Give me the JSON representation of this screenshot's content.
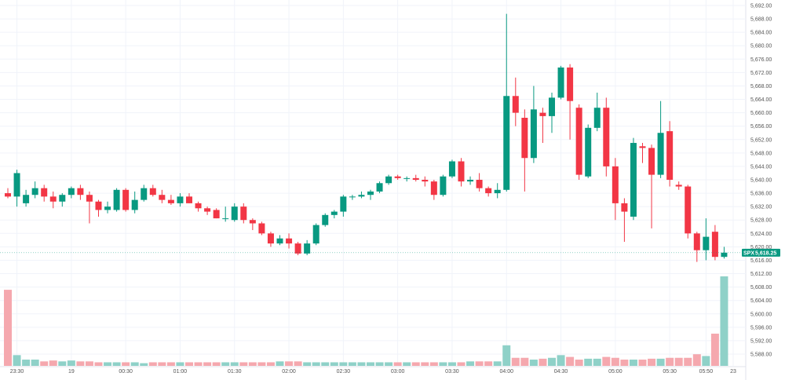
{
  "chart_data": {
    "type": "candlestick",
    "symbol": "SPX",
    "last_price": "5,618.25",
    "colors": {
      "up": "#089981",
      "down": "#f23645",
      "up_volume": "#8fd1c8",
      "down_volume": "#f5a8ae",
      "grid": "#f0f3fa"
    },
    "y_ticks": [
      "5,692.00",
      "5,688.00",
      "5,684.00",
      "5,680.00",
      "5,676.00",
      "5,672.00",
      "5,668.00",
      "5,664.00",
      "5,660.00",
      "5,656.00",
      "5,652.00",
      "5,648.00",
      "5,644.00",
      "5,640.00",
      "5,636.00",
      "5,632.00",
      "5,628.00",
      "5,624.00",
      "5,620.00",
      "5,616.00",
      "5,612.00",
      "5,608.00",
      "5,604.00",
      "5,600.00",
      "5,596.00",
      "5,592.00",
      "5,588.00"
    ],
    "ylim": [
      5586,
      5693
    ],
    "x_ticks": [
      {
        "label": "23:30",
        "index": 1
      },
      {
        "label": "19",
        "index": 7
      },
      {
        "label": "00:30",
        "index": 13
      },
      {
        "label": "01:00",
        "index": 19
      },
      {
        "label": "01:30",
        "index": 25
      },
      {
        "label": "02:00",
        "index": 31
      },
      {
        "label": "02:30",
        "index": 37
      },
      {
        "label": "03:00",
        "index": 43
      },
      {
        "label": "03:30",
        "index": 49
      },
      {
        "label": "04:00",
        "index": 55
      },
      {
        "label": "04:30",
        "index": 61
      },
      {
        "label": "05:00",
        "index": 67
      },
      {
        "label": "05:30",
        "index": 73
      },
      {
        "label": "05:50",
        "index": 77
      },
      {
        "label": "23",
        "index": 80
      }
    ],
    "candles": [
      {
        "o": 5636.0,
        "h": 5637.5,
        "l": 5634.5,
        "c": 5635.0,
        "v": 0.85
      },
      {
        "o": 5635.0,
        "h": 5643.0,
        "l": 5632.0,
        "c": 5642.0,
        "v": 0.12
      },
      {
        "o": 5633.0,
        "h": 5637.0,
        "l": 5632.0,
        "c": 5635.5,
        "v": 0.07
      },
      {
        "o": 5635.5,
        "h": 5639.5,
        "l": 5634.5,
        "c": 5637.5,
        "v": 0.07
      },
      {
        "o": 5637.5,
        "h": 5638.5,
        "l": 5633.5,
        "c": 5635.0,
        "v": 0.05
      },
      {
        "o": 5635.0,
        "h": 5636.5,
        "l": 5631.5,
        "c": 5633.5,
        "v": 0.06
      },
      {
        "o": 5633.5,
        "h": 5636.0,
        "l": 5632.0,
        "c": 5635.5,
        "v": 0.05
      },
      {
        "o": 5635.5,
        "h": 5638.0,
        "l": 5634.5,
        "c": 5637.5,
        "v": 0.06
      },
      {
        "o": 5637.5,
        "h": 5638.5,
        "l": 5634.0,
        "c": 5635.5,
        "v": 0.05
      },
      {
        "o": 5635.5,
        "h": 5636.5,
        "l": 5627.0,
        "c": 5633.5,
        "v": 0.05
      },
      {
        "o": 5633.5,
        "h": 5634.0,
        "l": 5629.0,
        "c": 5631.0,
        "v": 0.04
      },
      {
        "o": 5631.0,
        "h": 5633.5,
        "l": 5630.0,
        "c": 5632.0,
        "v": 0.04
      },
      {
        "o": 5631.0,
        "h": 5637.5,
        "l": 5630.5,
        "c": 5637.0,
        "v": 0.04
      },
      {
        "o": 5637.0,
        "h": 5637.5,
        "l": 5630.5,
        "c": 5631.0,
        "v": 0.04
      },
      {
        "o": 5631.0,
        "h": 5636.5,
        "l": 5630.0,
        "c": 5634.0,
        "v": 0.04
      },
      {
        "o": 5634.0,
        "h": 5638.5,
        "l": 5633.5,
        "c": 5637.5,
        "v": 0.03
      },
      {
        "o": 5637.5,
        "h": 5638.5,
        "l": 5635.0,
        "c": 5635.5,
        "v": 0.04
      },
      {
        "o": 5635.5,
        "h": 5637.0,
        "l": 5633.0,
        "c": 5634.0,
        "v": 0.04
      },
      {
        "o": 5634.0,
        "h": 5635.5,
        "l": 5632.5,
        "c": 5633.0,
        "v": 0.04
      },
      {
        "o": 5633.0,
        "h": 5636.0,
        "l": 5632.0,
        "c": 5635.0,
        "v": 0.04
      },
      {
        "o": 5635.0,
        "h": 5636.0,
        "l": 5633.0,
        "c": 5633.0,
        "v": 0.04
      },
      {
        "o": 5633.0,
        "h": 5633.5,
        "l": 5630.5,
        "c": 5631.5,
        "v": 0.04
      },
      {
        "o": 5631.5,
        "h": 5632.0,
        "l": 5629.5,
        "c": 5630.5,
        "v": 0.04
      },
      {
        "o": 5631.0,
        "h": 5631.5,
        "l": 5628.5,
        "c": 5628.5,
        "v": 0.04
      },
      {
        "o": 5628.5,
        "h": 5632.0,
        "l": 5627.5,
        "c": 5628.5,
        "v": 0.04
      },
      {
        "o": 5628.0,
        "h": 5633.0,
        "l": 5627.5,
        "c": 5632.0,
        "v": 0.04
      },
      {
        "o": 5632.0,
        "h": 5633.0,
        "l": 5627.0,
        "c": 5628.0,
        "v": 0.04
      },
      {
        "o": 5628.0,
        "h": 5628.5,
        "l": 5625.0,
        "c": 5627.0,
        "v": 0.04
      },
      {
        "o": 5627.0,
        "h": 5627.5,
        "l": 5623.5,
        "c": 5624.0,
        "v": 0.04
      },
      {
        "o": 5624.0,
        "h": 5624.5,
        "l": 5620.0,
        "c": 5621.0,
        "v": 0.04
      },
      {
        "o": 5621.0,
        "h": 5623.5,
        "l": 5620.5,
        "c": 5622.5,
        "v": 0.05
      },
      {
        "o": 5622.5,
        "h": 5624.0,
        "l": 5619.5,
        "c": 5621.0,
        "v": 0.05
      },
      {
        "o": 5621.0,
        "h": 5621.5,
        "l": 5617.5,
        "c": 5618.0,
        "v": 0.05
      },
      {
        "o": 5618.0,
        "h": 5622.0,
        "l": 5617.5,
        "c": 5621.0,
        "v": 0.04
      },
      {
        "o": 5621.0,
        "h": 5627.0,
        "l": 5620.5,
        "c": 5626.5,
        "v": 0.04
      },
      {
        "o": 5626.5,
        "h": 5630.0,
        "l": 5626.0,
        "c": 5629.5,
        "v": 0.04
      },
      {
        "o": 5629.5,
        "h": 5631.0,
        "l": 5628.5,
        "c": 5630.5,
        "v": 0.04
      },
      {
        "o": 5630.5,
        "h": 5635.5,
        "l": 5629.0,
        "c": 5635.0,
        "v": 0.04
      },
      {
        "o": 5635.0,
        "h": 5635.5,
        "l": 5634.0,
        "c": 5635.0,
        "v": 0.04
      },
      {
        "o": 5635.0,
        "h": 5636.5,
        "l": 5634.5,
        "c": 5635.5,
        "v": 0.04
      },
      {
        "o": 5635.5,
        "h": 5637.0,
        "l": 5634.0,
        "c": 5636.5,
        "v": 0.04
      },
      {
        "o": 5636.5,
        "h": 5639.5,
        "l": 5636.0,
        "c": 5639.0,
        "v": 0.04
      },
      {
        "o": 5639.0,
        "h": 5641.5,
        "l": 5638.5,
        "c": 5641.0,
        "v": 0.04
      },
      {
        "o": 5641.0,
        "h": 5641.5,
        "l": 5640.0,
        "c": 5640.5,
        "v": 0.04
      },
      {
        "o": 5640.5,
        "h": 5641.0,
        "l": 5639.5,
        "c": 5640.5,
        "v": 0.04
      },
      {
        "o": 5640.5,
        "h": 5641.5,
        "l": 5639.5,
        "c": 5640.0,
        "v": 0.04
      },
      {
        "o": 5640.0,
        "h": 5641.0,
        "l": 5638.0,
        "c": 5639.5,
        "v": 0.04
      },
      {
        "o": 5639.5,
        "h": 5640.0,
        "l": 5634.0,
        "c": 5635.5,
        "v": 0.04
      },
      {
        "o": 5635.5,
        "h": 5641.5,
        "l": 5635.0,
        "c": 5641.0,
        "v": 0.04
      },
      {
        "o": 5641.0,
        "h": 5646.0,
        "l": 5640.5,
        "c": 5645.5,
        "v": 0.04
      },
      {
        "o": 5645.5,
        "h": 5646.5,
        "l": 5638.0,
        "c": 5639.5,
        "v": 0.04
      },
      {
        "o": 5639.5,
        "h": 5641.0,
        "l": 5638.5,
        "c": 5640.0,
        "v": 0.05
      },
      {
        "o": 5640.0,
        "h": 5642.0,
        "l": 5636.5,
        "c": 5637.5,
        "v": 0.05
      },
      {
        "o": 5637.5,
        "h": 5638.0,
        "l": 5635.0,
        "c": 5636.0,
        "v": 0.05
      },
      {
        "o": 5636.0,
        "h": 5639.0,
        "l": 5634.5,
        "c": 5637.0,
        "v": 0.05
      },
      {
        "o": 5637.0,
        "h": 5689.5,
        "l": 5636.5,
        "c": 5665.0,
        "v": 0.23
      },
      {
        "o": 5665.0,
        "h": 5670.5,
        "l": 5656.0,
        "c": 5660.0,
        "v": 0.09
      },
      {
        "o": 5658.5,
        "h": 5661.0,
        "l": 5636.5,
        "c": 5646.5,
        "v": 0.09
      },
      {
        "o": 5646.5,
        "h": 5668.0,
        "l": 5645.0,
        "c": 5661.0,
        "v": 0.07
      },
      {
        "o": 5660.0,
        "h": 5661.5,
        "l": 5651.0,
        "c": 5659.0,
        "v": 0.08
      },
      {
        "o": 5659.0,
        "h": 5666.0,
        "l": 5654.0,
        "c": 5664.5,
        "v": 0.09
      },
      {
        "o": 5664.5,
        "h": 5674.0,
        "l": 5664.0,
        "c": 5673.5,
        "v": 0.12
      },
      {
        "o": 5673.5,
        "h": 5674.5,
        "l": 5652.0,
        "c": 5663.5,
        "v": 0.1
      },
      {
        "o": 5661.5,
        "h": 5662.5,
        "l": 5640.0,
        "c": 5641.5,
        "v": 0.07
      },
      {
        "o": 5641.0,
        "h": 5656.5,
        "l": 5640.5,
        "c": 5655.5,
        "v": 0.08
      },
      {
        "o": 5655.5,
        "h": 5666.0,
        "l": 5654.5,
        "c": 5661.5,
        "v": 0.08
      },
      {
        "o": 5661.5,
        "h": 5664.5,
        "l": 5641.0,
        "c": 5644.0,
        "v": 0.1
      },
      {
        "o": 5644.0,
        "h": 5646.5,
        "l": 5628.0,
        "c": 5633.0,
        "v": 0.09
      },
      {
        "o": 5633.0,
        "h": 5634.5,
        "l": 5621.5,
        "c": 5630.5,
        "v": 0.07
      },
      {
        "o": 5629.0,
        "h": 5652.5,
        "l": 5628.0,
        "c": 5651.0,
        "v": 0.07
      },
      {
        "o": 5650.0,
        "h": 5651.0,
        "l": 5645.0,
        "c": 5649.5,
        "v": 0.07
      },
      {
        "o": 5649.5,
        "h": 5650.5,
        "l": 5625.5,
        "c": 5641.5,
        "v": 0.08
      },
      {
        "o": 5641.5,
        "h": 5663.5,
        "l": 5640.5,
        "c": 5654.0,
        "v": 0.08
      },
      {
        "o": 5654.5,
        "h": 5657.5,
        "l": 5638.0,
        "c": 5640.0,
        "v": 0.09
      },
      {
        "o": 5638.5,
        "h": 5639.5,
        "l": 5637.0,
        "c": 5638.0,
        "v": 0.09
      },
      {
        "o": 5638.0,
        "h": 5638.5,
        "l": 5622.5,
        "c": 5624.0,
        "v": 0.09
      },
      {
        "o": 5624.0,
        "h": 5624.5,
        "l": 5615.5,
        "c": 5619.0,
        "v": 0.13
      },
      {
        "o": 5619.0,
        "h": 5628.5,
        "l": 5616.0,
        "c": 5623.0,
        "v": 0.11
      },
      {
        "o": 5624.5,
        "h": 5626.5,
        "l": 5616.0,
        "c": 5617.0,
        "v": 0.36
      },
      {
        "o": 5617.0,
        "h": 5620.0,
        "l": 5616.5,
        "c": 5618.25,
        "v": 1.0
      }
    ]
  }
}
